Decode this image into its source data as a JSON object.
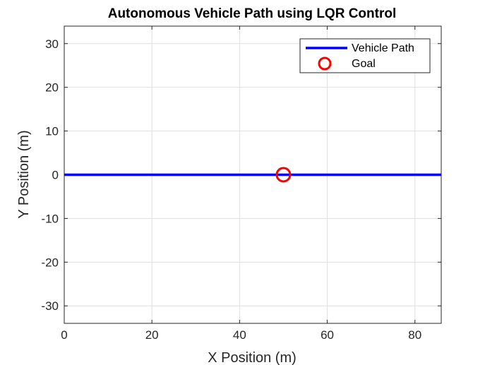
{
  "chart_data": {
    "type": "line",
    "title": "Autonomous Vehicle Path using LQR Control",
    "xlabel": "X Position (m)",
    "ylabel": "Y Position (m)",
    "xlim": [
      0,
      86
    ],
    "ylim": [
      -34,
      34
    ],
    "xticks": [
      0,
      20,
      40,
      60,
      80
    ],
    "yticks": [
      -30,
      -20,
      -10,
      0,
      10,
      20,
      30
    ],
    "grid": true,
    "legend_position": "top-right",
    "series": [
      {
        "name": "Vehicle Path",
        "kind": "line",
        "color": "#0000ff",
        "x": [
          0,
          86
        ],
        "y": [
          0,
          0
        ]
      },
      {
        "name": "Goal",
        "kind": "marker",
        "marker": "circle",
        "color": "#ff0000",
        "x": [
          50
        ],
        "y": [
          0
        ]
      }
    ]
  }
}
